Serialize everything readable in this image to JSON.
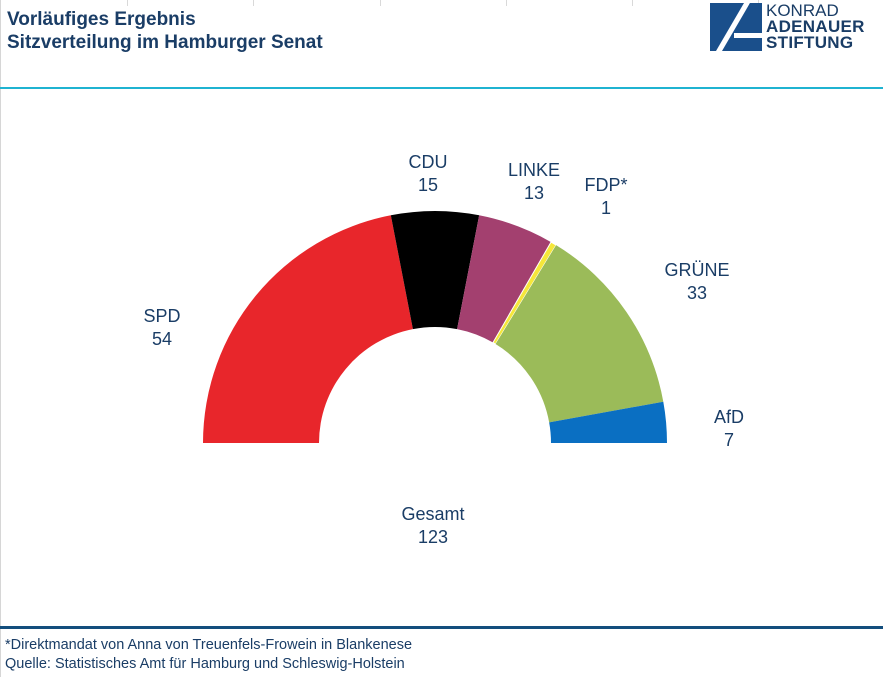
{
  "header": {
    "title_line1": "Vorläufiges Ergebnis",
    "title_line2": "Sitzverteilung im Hamburger Senat"
  },
  "logo": {
    "line1": "KONRAD",
    "line2": "ADENAUER",
    "line3": "STIFTUNG",
    "color": "#1a4f8b"
  },
  "colors": {
    "accent_top_rule": "#1fb3d1",
    "accent_bottom_rule": "#134e7d",
    "text": "#1a3d66"
  },
  "chart_data": {
    "type": "pie",
    "subtype": "semicircle-donut",
    "title": "Sitzverteilung im Hamburger Senat",
    "categories": [
      "SPD",
      "CDU",
      "LINKE",
      "FDP*",
      "GRÜNE",
      "AfD"
    ],
    "values": [
      54,
      15,
      13,
      1,
      33,
      7
    ],
    "colors": [
      "#e8262b",
      "#000000",
      "#a3406f",
      "#f5e73a",
      "#9bbb59",
      "#0a6fc2"
    ],
    "total_label": "Gesamt",
    "total": 123,
    "legend": "none (labels placed next to segments)"
  },
  "footer": {
    "note": "*Direktmandat von Anna von Treuenfels-Frowein  in Blankenese",
    "source": "Quelle:  Statistisches Amt für Hamburg und Schleswig-Holstein"
  }
}
